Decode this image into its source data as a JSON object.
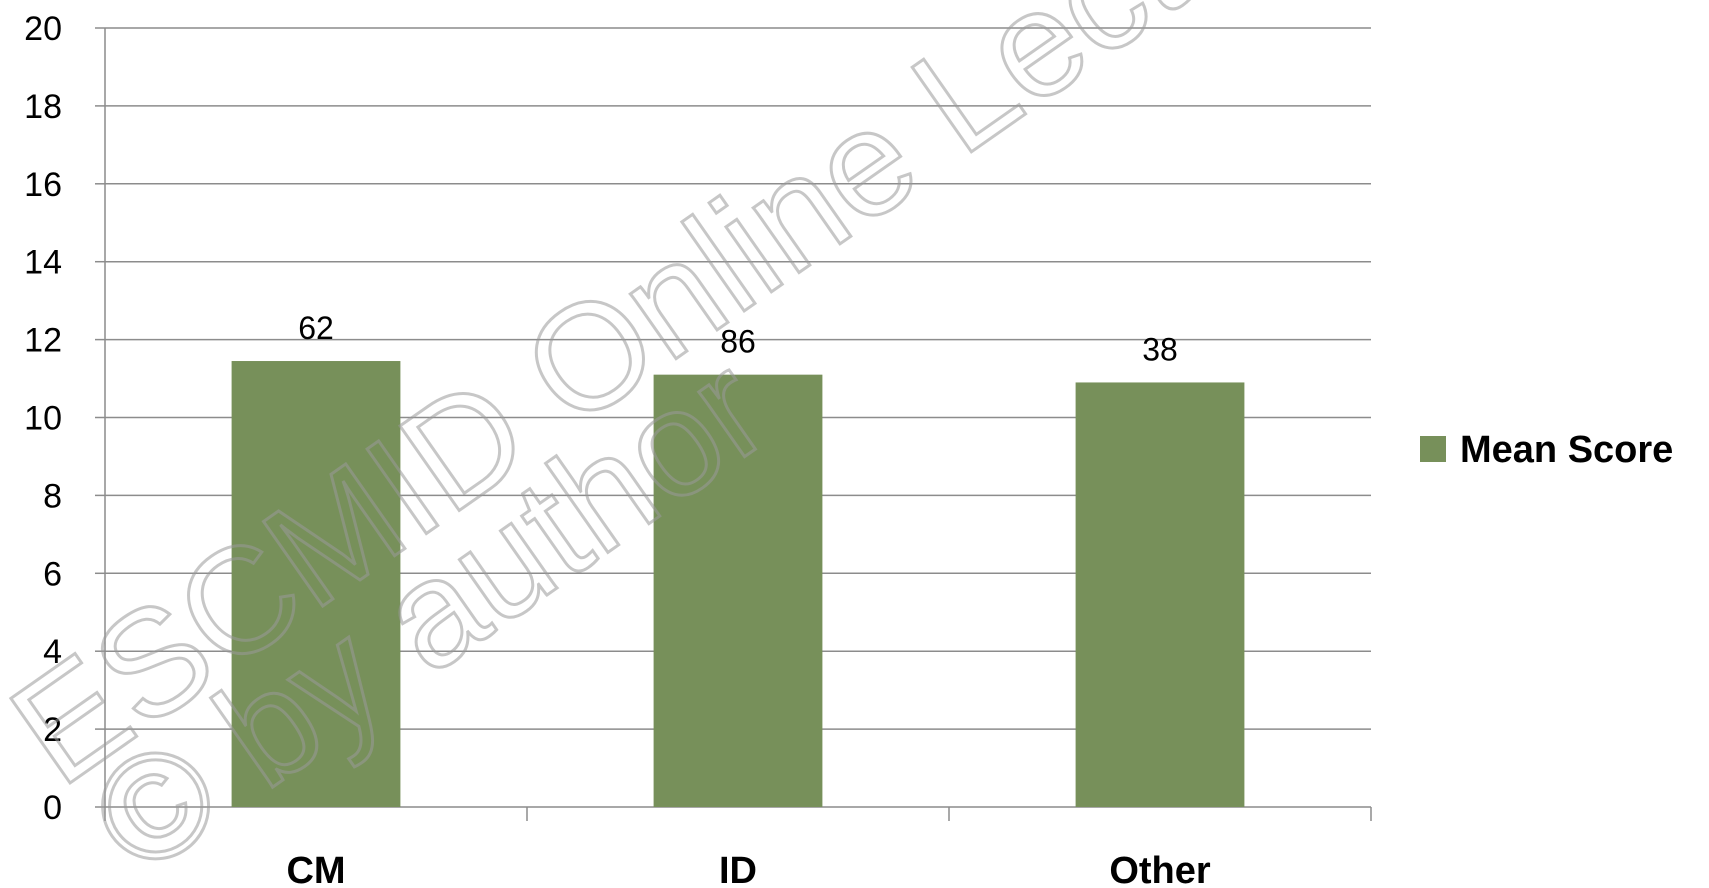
{
  "chart_data": {
    "type": "bar",
    "categories": [
      "CM",
      "ID",
      "Other"
    ],
    "series": [
      {
        "name": "Mean Score",
        "values": [
          11.45,
          11.1,
          10.9
        ],
        "data_labels": [
          "62",
          "86",
          "38"
        ],
        "color": "#77905a"
      }
    ],
    "ylim": [
      0,
      20
    ],
    "yticks": [
      0,
      2,
      4,
      6,
      8,
      10,
      12,
      14,
      16,
      18,
      20
    ],
    "grid": true,
    "legend_position": "right",
    "title": "",
    "xlabel": "",
    "ylabel": ""
  },
  "watermark": {
    "line1": "ESCMID Online Lecture",
    "line2": "© by author"
  }
}
